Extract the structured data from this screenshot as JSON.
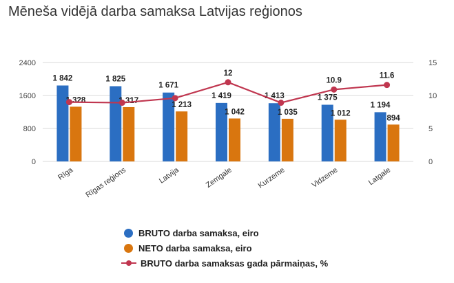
{
  "title": "Mēneša vidējā darba samaksa Latvijas reģionos",
  "chart_data": {
    "type": "bar",
    "categories": [
      "Rīga",
      "Rīgas reģions",
      "Latvija",
      "Zemgale",
      "Kurzeme",
      "Vidzeme",
      "Latgale"
    ],
    "series": [
      {
        "name": "BRUTO darba samaksa, eiro",
        "type": "bar",
        "axis": "left",
        "color": "#2b6ec2",
        "values": [
          1842,
          1825,
          1671,
          1419,
          1413,
          1375,
          1194
        ],
        "labels": [
          "1 842",
          "1 825",
          "1 671",
          "1 419",
          "1 413",
          "1 375",
          "1 194"
        ]
      },
      {
        "name": "NETO darba samaksa, eiro",
        "type": "bar",
        "axis": "left",
        "color": "#d9760f",
        "values": [
          1328,
          1317,
          1213,
          1042,
          1035,
          1012,
          894
        ],
        "labels": [
          "1 328",
          "1 317",
          "1 213",
          "1 042",
          "1 035",
          "1 012",
          "894"
        ]
      },
      {
        "name": "BRUTO darba samaksas gada pārmaiņas, %",
        "type": "line",
        "axis": "right",
        "color": "#c0364f",
        "values": [
          9.0,
          8.9,
          9.6,
          12,
          8.9,
          10.9,
          11.6
        ],
        "labels": [
          "",
          "",
          "",
          "12",
          "",
          "10.9",
          "11.6"
        ]
      }
    ],
    "y_left": {
      "ylim": [
        0,
        2400
      ],
      "ticks": [
        "0",
        "800",
        "1600",
        "2400"
      ],
      "tick_values": [
        0,
        800,
        1600,
        2400
      ]
    },
    "y_right": {
      "ylim": [
        0,
        15
      ],
      "ticks": [
        "0",
        "5",
        "10",
        "15"
      ],
      "tick_values": [
        0,
        5,
        10,
        15
      ]
    },
    "grid": true,
    "legend": "bottom"
  }
}
